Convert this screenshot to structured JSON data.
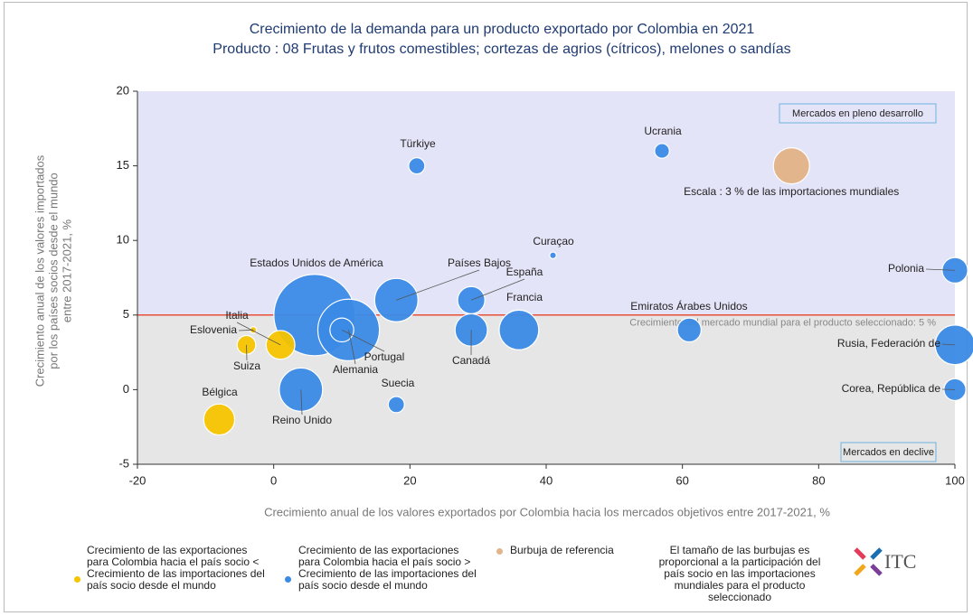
{
  "chart_data": {
    "type": "bubble",
    "title": "Crecimiento de la demanda para un producto exportado por Colombia en 2021",
    "subtitle": "Producto : 08 Frutas y frutos comestibles; cortezas de agrios (cítricos), melones o sandías",
    "x_label": "Crecimiento anual de los valores exportados por Colombia hacia los mercados objetivos entre 2017-2021, %",
    "y_label": [
      "Crecimiento anual de los valores importados",
      "por los países socios desde el mundo",
      "entre 2017-2021, %"
    ],
    "xlim": [
      -20,
      100
    ],
    "xticks": [
      -20,
      0,
      20,
      40,
      60,
      80,
      100
    ],
    "ylim": [
      -5,
      20
    ],
    "yticks": [
      -5,
      0,
      5,
      10,
      15,
      20
    ],
    "reference_line": {
      "value": 5,
      "label": "Crecimiento del mercado mundial para el producto seleccionado: 5 %",
      "color": "#e8503a"
    },
    "quadrant_labels": {
      "top": "Mercados en pleno desarrollo",
      "bottom": "Mercados en declive"
    },
    "series": [
      {
        "name": "Crecimiento de las exportaciones para Colombia hacia el país socio < Crecimiento de las importaciones del país socio desde el mundo",
        "color": "#f5c400",
        "points": [
          {
            "label": "Italia",
            "x": 1,
            "y": 3,
            "size": 1.9
          },
          {
            "label": "Eslovenia",
            "x": -3,
            "y": 4,
            "size": 0.1
          },
          {
            "label": "Suiza",
            "x": -4,
            "y": 3,
            "size": 0.8
          },
          {
            "label": "Bélgica",
            "x": -8,
            "y": -2,
            "size": 2.2
          }
        ]
      },
      {
        "name": "Crecimiento de las exportaciones para Colombia hacia el país socio > Crecimiento de las importaciones del país socio desde el mundo",
        "color": "#3b8ae6",
        "points": [
          {
            "label": "Türkiye",
            "x": 21,
            "y": 15,
            "size": 0.6
          },
          {
            "label": "Ucrania",
            "x": 57,
            "y": 16,
            "size": 0.5
          },
          {
            "label": "Curaçao",
            "x": 41,
            "y": 9,
            "size": 0.1
          },
          {
            "label": "Polonia",
            "x": 100,
            "y": 8,
            "size": 1.5
          },
          {
            "label": "Países Bajos",
            "x": 18,
            "y": 6,
            "size": 4.3
          },
          {
            "label": "España",
            "x": 29,
            "y": 6,
            "size": 1.7
          },
          {
            "label": "Francia",
            "x": 36,
            "y": 4,
            "size": 3.6
          },
          {
            "label": "Canadá",
            "x": 29,
            "y": 4,
            "size": 2.4
          },
          {
            "label": "Emiratos Árabes Unidos",
            "x": 61,
            "y": 4,
            "size": 1.3
          },
          {
            "label": "Estados Unidos de América",
            "x": 6,
            "y": 5,
            "size": 15.2
          },
          {
            "label": "Portugal",
            "x": 10,
            "y": 4,
            "size": 1.3
          },
          {
            "label": "Alemania",
            "x": 11,
            "y": 4,
            "size": 8.7
          },
          {
            "label": "Reino Unido",
            "x": 4,
            "y": 0,
            "size": 4.3
          },
          {
            "label": "Suecia",
            "x": 18,
            "y": -1,
            "size": 0.6
          },
          {
            "label": "Rusia, Federación de",
            "x": 100,
            "y": 3,
            "size": 3.6
          },
          {
            "label": "Corea, República de",
            "x": 100,
            "y": 0,
            "size": 1.1
          }
        ]
      }
    ],
    "reference_bubble": {
      "name": "Burbuja de referencia",
      "label": "Escala : 3 % de las importaciones mundiales",
      "x": 76,
      "y": 15,
      "size": 3,
      "color": "#e2b58c"
    },
    "size_note": "El tamaño de las burbujas es proporcional a la participación del país socio en las importaciones mundiales para el producto seleccionado",
    "logo_text": "ITC"
  }
}
